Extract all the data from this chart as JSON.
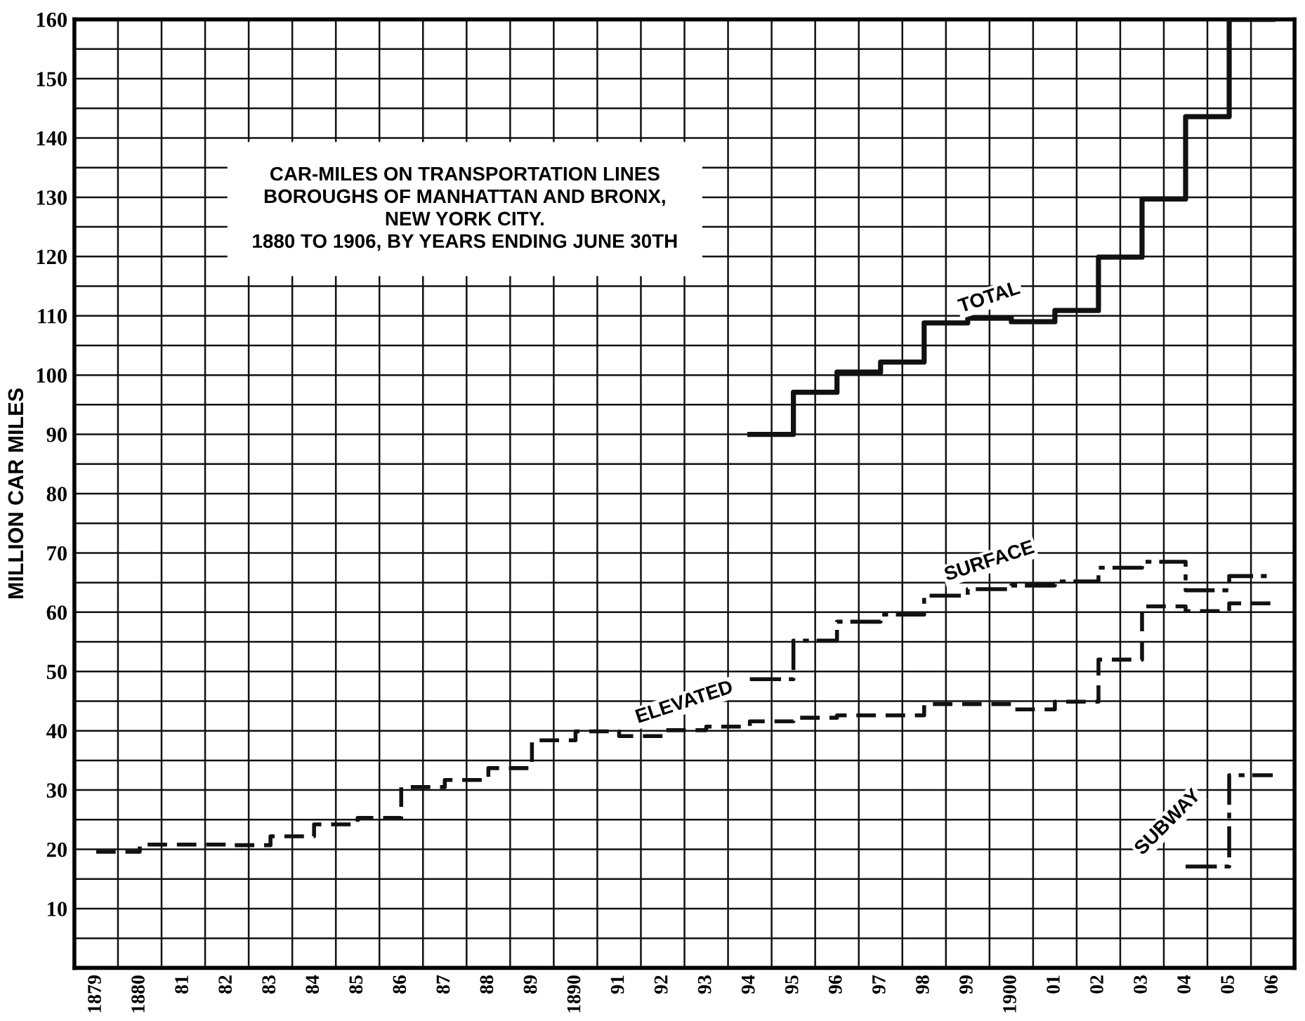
{
  "chart_data": {
    "type": "step",
    "title": "CAR-MILES ON TRANSPORTATION LINES\nBOROUGHS OF MANHATTAN AND BRONX,\nNEW YORK CITY.\n1880 TO 1906, BY YEARS ENDING JUNE 30TH",
    "ylabel": "MILLION CAR MILES",
    "categories": [
      "1879",
      "1880",
      "81",
      "82",
      "83",
      "84",
      "85",
      "86",
      "87",
      "88",
      "89",
      "1890",
      "91",
      "92",
      "93",
      "94",
      "95",
      "96",
      "97",
      "98",
      "99",
      "1900",
      "01",
      "02",
      "03",
      "04",
      "05",
      "06"
    ],
    "series": [
      {
        "name": "TOTAL",
        "color": "#111111",
        "line_style": "solid",
        "values": [
          null,
          null,
          null,
          null,
          null,
          null,
          null,
          null,
          null,
          null,
          null,
          null,
          null,
          null,
          null,
          90,
          97.1,
          100.5,
          102.2,
          108.8,
          109.6,
          109.0,
          110.9,
          119.9,
          129.7,
          143.6,
          160,
          160
        ]
      },
      {
        "name": "SURFACE",
        "color": "#111111",
        "line_style": "dashdot",
        "values": [
          null,
          null,
          null,
          null,
          null,
          null,
          null,
          null,
          null,
          null,
          null,
          null,
          null,
          null,
          null,
          48.7,
          55.2,
          58.4,
          59.6,
          62.8,
          63.9,
          64.5,
          65.2,
          67.5,
          68.5,
          63.7,
          66.1,
          66.1
        ]
      },
      {
        "name": "ELEVATED",
        "color": "#111111",
        "line_style": "dashed",
        "values": [
          19.6,
          20.8,
          20.8,
          20.7,
          22.2,
          24.2,
          25.3,
          30.5,
          31.7,
          33.7,
          38.4,
          39.9,
          39.1,
          40.1,
          40.7,
          41.6,
          42.2,
          42.6,
          42.6,
          44.5,
          44.5,
          43.6,
          44.9,
          52.0,
          61.0,
          60.2,
          61.5,
          61.5
        ]
      },
      {
        "name": "SUBWAY",
        "color": "#111111",
        "line_style": "dashdot",
        "values": [
          null,
          null,
          null,
          null,
          null,
          null,
          null,
          null,
          null,
          null,
          null,
          null,
          null,
          null,
          null,
          null,
          null,
          null,
          null,
          null,
          null,
          null,
          null,
          null,
          null,
          17.1,
          32.5,
          32.5
        ]
      }
    ],
    "ylim": [
      0,
      160
    ],
    "yticks": [
      {
        "value": 0,
        "label": null
      },
      {
        "value": 5,
        "label": null
      },
      10,
      {
        "value": 15,
        "label": null
      },
      20,
      {
        "value": 25,
        "label": null
      },
      30,
      {
        "value": 35,
        "label": null
      },
      40,
      {
        "value": 45,
        "label": null
      },
      50,
      {
        "value": 55,
        "label": null
      },
      60,
      {
        "value": 65,
        "label": null
      },
      70,
      {
        "value": 75,
        "label": null
      },
      80,
      {
        "value": 85,
        "label": null
      },
      90,
      {
        "value": 95,
        "label": null
      },
      100,
      {
        "value": 105,
        "label": null
      },
      110,
      {
        "value": 115,
        "label": null
      },
      120,
      {
        "value": 125,
        "label": null
      },
      130,
      {
        "value": 135,
        "label": null
      },
      140,
      {
        "value": 145,
        "label": null
      },
      150,
      {
        "value": 155,
        "label": null
      },
      160
    ],
    "grid": true
  }
}
